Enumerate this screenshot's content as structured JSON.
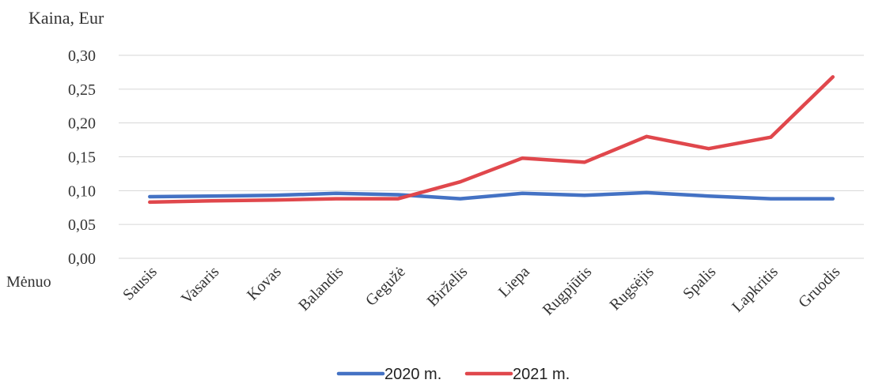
{
  "chart_data": {
    "type": "line",
    "title": "",
    "ylabel": "Kaina, Eur",
    "xlabel": "Mėnuo",
    "ylim": [
      0,
      0.3
    ],
    "y_ticks": [
      "0,00",
      "0,05",
      "0,10",
      "0,15",
      "0,20",
      "0,25",
      "0,30"
    ],
    "categories": [
      "Sausis",
      "Vasaris",
      "Kovas",
      "Balandis",
      "Gegužė",
      "Birželis",
      "Liepa",
      "Rugpjūtis",
      "Rugsėjis",
      "Spalis",
      "Lapkritis",
      "Gruodis"
    ],
    "series": [
      {
        "name": "2020 m.",
        "color": "#4472C4",
        "values": [
          0.091,
          0.092,
          0.093,
          0.096,
          0.094,
          0.088,
          0.096,
          0.093,
          0.097,
          0.092,
          0.088,
          0.088
        ]
      },
      {
        "name": "2021 m.",
        "color": "#E0474C",
        "values": [
          0.083,
          0.085,
          0.086,
          0.088,
          0.088,
          0.113,
          0.148,
          0.142,
          0.18,
          0.162,
          0.179,
          0.268
        ]
      }
    ],
    "grid": true,
    "legend_position": "bottom"
  }
}
